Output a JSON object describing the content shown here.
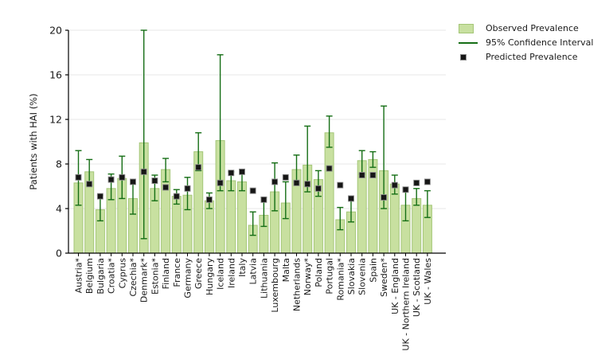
{
  "chart_data": {
    "type": "bar",
    "title": "",
    "ylabel": "Patients with HAI (%)",
    "ylim": [
      0,
      20
    ],
    "yticks": [
      0,
      4,
      8,
      12,
      16,
      20
    ],
    "grid": "horizontal",
    "legend": {
      "position": "top-right",
      "items": [
        {
          "label": "Observed Prevalence",
          "type": "bar-swatch"
        },
        {
          "label": "95% Confidence Interval",
          "type": "line"
        },
        {
          "label": "Predicted Prevalence",
          "type": "square"
        }
      ]
    },
    "categories": [
      "Austria*",
      "Belgium",
      "Bulgaria",
      "Croatia*",
      "Cyprus",
      "Czechia*",
      "Denmark*",
      "Estonia*",
      "Finland",
      "France",
      "Germany",
      "Greece",
      "Hungary",
      "Iceland",
      "Ireland",
      "Italy",
      "Latvia",
      "Lithuania",
      "Luxembourg",
      "Malta",
      "Netherlands",
      "Norway*",
      "Poland",
      "Portugal",
      "Romania*",
      "Slovakia",
      "Slovenia",
      "Spain",
      "Sweden*",
      "UK - England",
      "UK - Northern Ireland",
      "UK - Scotland",
      "UK - Wales"
    ],
    "series": [
      {
        "name": "Observed Prevalence",
        "values": [
          6.3,
          7.3,
          3.9,
          5.8,
          6.7,
          4.9,
          9.9,
          5.8,
          7.5,
          5.1,
          5.2,
          9.1,
          4.7,
          10.1,
          6.5,
          6.4,
          2.5,
          3.4,
          5.5,
          4.5,
          7.5,
          7.9,
          6.6,
          10.8,
          3.0,
          3.7,
          8.3,
          8.4,
          7.4,
          6.2,
          4.3,
          4.9,
          4.3
        ]
      },
      {
        "name": "95% Confidence Interval",
        "low": [
          4.3,
          6.1,
          2.9,
          4.8,
          4.9,
          3.5,
          1.3,
          4.7,
          6.4,
          4.4,
          3.9,
          7.4,
          4.0,
          5.6,
          5.6,
          5.6,
          1.6,
          2.4,
          3.8,
          3.1,
          6.4,
          5.5,
          5.1,
          9.5,
          2.1,
          2.8,
          7.1,
          7.7,
          4.0,
          5.3,
          2.9,
          4.3,
          3.2
        ],
        "high": [
          9.2,
          8.4,
          5.2,
          7.1,
          8.7,
          6.2,
          20.0,
          7.0,
          8.5,
          5.7,
          6.8,
          10.8,
          5.4,
          17.8,
          7.3,
          7.5,
          3.7,
          5.0,
          8.1,
          6.4,
          8.8,
          11.4,
          7.4,
          12.3,
          4.1,
          4.8,
          9.2,
          9.1,
          13.2,
          7.0,
          5.8,
          5.8,
          5.6
        ]
      },
      {
        "name": "Predicted Prevalence",
        "values": [
          6.8,
          6.2,
          5.1,
          6.6,
          6.8,
          6.4,
          7.3,
          6.5,
          5.9,
          5.1,
          5.8,
          7.7,
          4.8,
          6.3,
          7.2,
          7.3,
          5.6,
          4.8,
          6.4,
          6.8,
          6.3,
          6.2,
          5.8,
          7.6,
          6.1,
          4.9,
          7.0,
          7.0,
          5.0,
          6.1,
          5.7,
          6.3,
          6.4
        ]
      }
    ]
  },
  "colors": {
    "bar_fill": "#c8e0a0",
    "bar_edge": "#a4c677",
    "ci_line": "#156e15",
    "marker_fill": "#161616",
    "marker_edge": "#8a8a8a",
    "grid": "#e7e7e7",
    "axis": "#000000",
    "text": "#1a1a1a"
  }
}
